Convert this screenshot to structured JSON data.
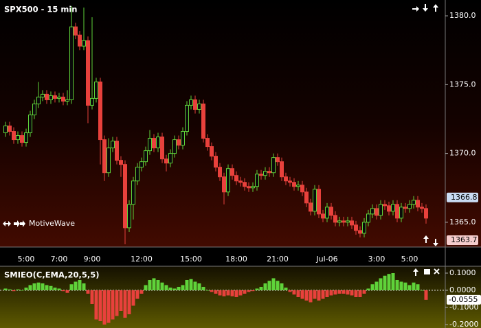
{
  "chart_data": [
    {
      "type": "candlestick",
      "title": "SPX500 - 15 min",
      "watermark": "MotiveWave",
      "up_color": "#5fd33a",
      "down_color": "#e8413c",
      "categories": [
        null,
        null,
        null,
        null,
        null,
        "5:00",
        null,
        null,
        null,
        null,
        null,
        null,
        null,
        "7:00",
        null,
        null,
        null,
        null,
        null,
        null,
        null,
        "9:00",
        null,
        null,
        null,
        null,
        null,
        null,
        null,
        null,
        null,
        null,
        null,
        "12:00",
        null,
        null,
        null,
        null,
        null,
        null,
        null,
        null,
        null,
        null,
        null,
        "15:00",
        null,
        null,
        null,
        null,
        null,
        null,
        null,
        null,
        null,
        null,
        "18:00",
        null,
        null,
        null,
        null,
        null,
        null,
        null,
        null,
        null,
        "21:00",
        null,
        null,
        null,
        null,
        null,
        null,
        null,
        null,
        null,
        null,
        null,
        "Jul-06",
        null,
        null,
        null,
        null,
        null,
        null,
        null,
        null,
        null,
        null,
        null,
        "3:00",
        null,
        null,
        null,
        null,
        null,
        null,
        null,
        "5:00",
        null,
        null,
        null,
        null
      ],
      "open": [
        1371.5,
        1372.0,
        1371.6,
        1371.0,
        1371.3,
        1370.8,
        1371.5,
        1372.8,
        1373.6,
        1374.1,
        1374.3,
        1373.9,
        1374.2,
        1374.0,
        1374.1,
        1373.8,
        1373.9,
        1379.2,
        1378.6,
        1377.8,
        1378.2,
        1373.5,
        1374.0,
        1375.2,
        1371.0,
        1368.6,
        1370.4,
        1370.9,
        1369.5,
        1369.2,
        1364.6,
        1366.3,
        1368.0,
        1369.0,
        1369.4,
        1370.2,
        1371.1,
        1370.4,
        1371.2,
        1369.6,
        1369.3,
        1370.0,
        1371.0,
        1370.6,
        1371.6,
        1373.5,
        1373.9,
        1373.2,
        1373.6,
        1371.1,
        1370.5,
        1369.8,
        1369.0,
        1368.3,
        1367.2,
        1368.9,
        1368.4,
        1368.0,
        1367.9,
        1367.6,
        1367.5,
        1367.6,
        1368.5,
        1368.4,
        1368.7,
        1368.6,
        1369.7,
        1369.4,
        1368.3,
        1368.0,
        1367.9,
        1367.6,
        1367.7,
        1367.2,
        1366.4,
        1365.8,
        1367.4,
        1365.6,
        1365.3,
        1366.1,
        1365.5,
        1365.0,
        1365.1,
        1365.0,
        1365.1,
        1364.8,
        1364.4,
        1364.2,
        1365.0,
        1365.6,
        1366.0,
        1365.5,
        1366.3,
        1366.2,
        1365.8,
        1366.3,
        1365.3,
        1366.1,
        1366.0,
        1366.3,
        1366.6,
        1366.1,
        1366.0
      ],
      "high": [
        1372.3,
        1372.3,
        1371.9,
        1371.6,
        1371.6,
        1371.8,
        1373.1,
        1373.9,
        1375.2,
        1374.6,
        1374.6,
        1374.5,
        1374.5,
        1374.4,
        1374.4,
        1374.6,
        1380.7,
        1379.5,
        1378.9,
        1380.6,
        1378.5,
        1379.9,
        1375.5,
        1375.5,
        1371.3,
        1371.1,
        1371.2,
        1371.2,
        1369.8,
        1369.5,
        1366.6,
        1368.3,
        1369.3,
        1369.7,
        1370.5,
        1371.7,
        1371.4,
        1371.5,
        1371.5,
        1369.9,
        1370.3,
        1371.3,
        1371.3,
        1371.9,
        1373.8,
        1374.2,
        1374.2,
        1373.9,
        1373.9,
        1371.4,
        1370.8,
        1370.1,
        1369.3,
        1368.6,
        1369.2,
        1369.2,
        1368.7,
        1368.3,
        1368.2,
        1367.9,
        1367.9,
        1368.8,
        1368.8,
        1369.0,
        1369.0,
        1370.0,
        1370.0,
        1369.7,
        1368.6,
        1368.3,
        1368.2,
        1368.0,
        1368.0,
        1367.5,
        1366.7,
        1367.7,
        1367.7,
        1365.9,
        1366.4,
        1366.4,
        1365.8,
        1365.4,
        1365.4,
        1365.4,
        1365.4,
        1365.1,
        1364.7,
        1365.3,
        1365.9,
        1366.3,
        1366.3,
        1366.6,
        1366.6,
        1366.5,
        1366.6,
        1366.6,
        1366.4,
        1366.4,
        1366.6,
        1366.9,
        1366.9,
        1366.4,
        1366.3
      ],
      "low": [
        1371.2,
        1371.3,
        1370.7,
        1370.7,
        1370.5,
        1370.5,
        1371.2,
        1372.5,
        1373.3,
        1373.8,
        1373.6,
        1373.6,
        1373.7,
        1373.7,
        1373.5,
        1373.5,
        1373.6,
        1378.3,
        1377.5,
        1377.5,
        1372.2,
        1373.2,
        1373.7,
        1369.2,
        1368.0,
        1368.3,
        1370.1,
        1369.2,
        1368.3,
        1363.4,
        1364.3,
        1365.2,
        1367.7,
        1368.7,
        1369.1,
        1369.9,
        1370.1,
        1370.1,
        1369.3,
        1368.7,
        1369.0,
        1369.7,
        1370.3,
        1370.3,
        1371.3,
        1373.2,
        1372.9,
        1372.9,
        1370.8,
        1370.2,
        1369.5,
        1368.7,
        1368.0,
        1366.3,
        1366.9,
        1368.1,
        1367.7,
        1367.6,
        1367.3,
        1367.2,
        1367.2,
        1367.3,
        1368.1,
        1368.1,
        1368.3,
        1368.3,
        1369.1,
        1368.0,
        1367.7,
        1367.6,
        1367.3,
        1367.3,
        1366.9,
        1366.1,
        1365.5,
        1365.5,
        1365.3,
        1365.0,
        1365.0,
        1365.2,
        1364.7,
        1364.7,
        1364.7,
        1364.7,
        1364.5,
        1364.1,
        1363.9,
        1363.9,
        1364.7,
        1365.3,
        1365.2,
        1365.2,
        1365.9,
        1365.5,
        1365.5,
        1365.0,
        1365.0,
        1365.7,
        1365.7,
        1366.0,
        1365.8,
        1365.7,
        1364.9
      ],
      "close": [
        1372.0,
        1371.6,
        1371.0,
        1371.3,
        1370.8,
        1371.5,
        1372.8,
        1373.6,
        1374.1,
        1374.3,
        1373.9,
        1374.2,
        1374.0,
        1374.1,
        1373.8,
        1373.9,
        1379.2,
        1378.6,
        1377.8,
        1378.2,
        1373.5,
        1374.0,
        1375.2,
        1371.0,
        1368.6,
        1370.4,
        1370.9,
        1369.5,
        1369.2,
        1364.6,
        1366.3,
        1368.0,
        1369.0,
        1369.4,
        1370.2,
        1371.1,
        1370.4,
        1371.2,
        1369.6,
        1369.3,
        1370.0,
        1371.0,
        1370.6,
        1371.6,
        1373.5,
        1373.9,
        1373.2,
        1373.6,
        1371.1,
        1370.5,
        1369.8,
        1369.0,
        1368.3,
        1367.2,
        1368.9,
        1368.4,
        1368.0,
        1367.9,
        1367.6,
        1367.5,
        1367.6,
        1368.5,
        1368.4,
        1368.7,
        1368.6,
        1369.7,
        1369.4,
        1368.3,
        1368.0,
        1367.9,
        1367.6,
        1367.7,
        1367.2,
        1366.4,
        1365.8,
        1367.4,
        1365.6,
        1365.3,
        1366.1,
        1365.5,
        1365.0,
        1365.1,
        1365.0,
        1365.1,
        1364.8,
        1364.4,
        1364.2,
        1365.0,
        1365.6,
        1366.0,
        1365.5,
        1366.3,
        1366.2,
        1365.8,
        1366.3,
        1365.3,
        1366.1,
        1366.0,
        1366.3,
        1366.6,
        1366.1,
        1366.0,
        1365.3
      ],
      "ylim": [
        1363.2,
        1381.15
      ],
      "yticks": [
        {
          "value": 1365,
          "label": "1365.0"
        },
        {
          "value": 1370,
          "label": "1370.0"
        },
        {
          "value": 1375,
          "label": "1375.0"
        },
        {
          "value": 1380,
          "label": "1380.0"
        }
      ],
      "price_markers": [
        1366.8,
        1363.7
      ],
      "marker_colors": [
        "#c9dbf2",
        "#f5cccc"
      ]
    },
    {
      "type": "bar",
      "title": "SMIEO(C,EMA,20,5,5)",
      "pos_color": "#5fd33a",
      "neg_color": "#e8413c",
      "values": [
        0.01,
        0.005,
        -0.005,
        0.005,
        0.0,
        0.015,
        0.03,
        0.04,
        0.045,
        0.04,
        0.03,
        0.025,
        0.015,
        0.01,
        -0.005,
        -0.015,
        0.035,
        0.05,
        0.06,
        0.04,
        -0.02,
        -0.08,
        -0.17,
        -0.18,
        -0.2,
        -0.19,
        -0.17,
        -0.15,
        -0.12,
        -0.16,
        -0.14,
        -0.09,
        -0.05,
        -0.02,
        0.03,
        0.06,
        0.07,
        0.06,
        0.045,
        0.03,
        0.015,
        0.01,
        0.02,
        0.03,
        0.06,
        0.065,
        0.05,
        0.04,
        0.02,
        0.0,
        -0.01,
        -0.02,
        -0.03,
        -0.035,
        -0.03,
        -0.035,
        -0.04,
        -0.03,
        -0.02,
        -0.01,
        -0.005,
        0.01,
        0.02,
        0.04,
        0.055,
        0.07,
        0.055,
        0.04,
        0.015,
        -0.01,
        -0.025,
        -0.04,
        -0.05,
        -0.06,
        -0.07,
        -0.05,
        -0.06,
        -0.05,
        -0.04,
        -0.03,
        -0.025,
        -0.02,
        -0.02,
        -0.025,
        -0.03,
        -0.04,
        -0.04,
        -0.02,
        0.01,
        0.035,
        0.05,
        0.07,
        0.085,
        0.095,
        0.1,
        0.06,
        0.05,
        0.045,
        0.03,
        0.045,
        0.035,
        0.0,
        -0.0555
      ],
      "ylim": [
        -0.22,
        0.14
      ],
      "yticks": [
        {
          "value": -0.2,
          "label": "-0.2000"
        },
        {
          "value": -0.1,
          "label": "-0.1000"
        },
        {
          "value": 0,
          "label": "0.0000"
        },
        {
          "value": 0.1,
          "label": "0.1000"
        }
      ]
    }
  ]
}
